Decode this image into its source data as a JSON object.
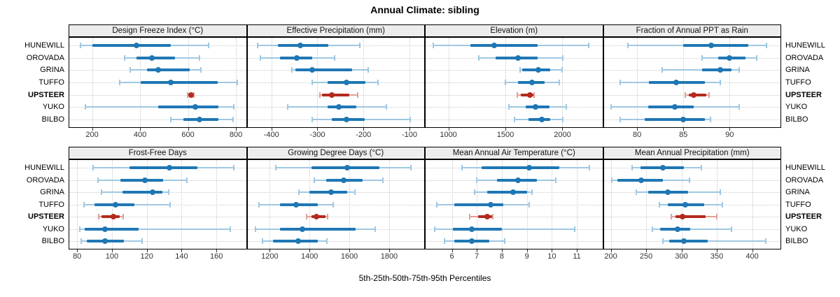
{
  "title": "Annual Climate: sibling",
  "caption": "5th-25th-50th-75th-95th Percentiles",
  "colors": {
    "normal_main": "#1f77b4",
    "normal_range": "#9fc8e2",
    "highlight_main": "#b5291e",
    "highlight_range": "#dfa099",
    "header_bg": "#ededed",
    "grid": "#c9c9c9",
    "panel_border": "#000000",
    "tick_text": "#333333"
  },
  "chart_data": {
    "type": "dot-interval-trellis",
    "layout": {
      "rows": 2,
      "cols": 4,
      "grid": "dotted",
      "legend": "none"
    },
    "sites": [
      "HUNEWILL",
      "OROVADA",
      "GRINA",
      "TUFFO",
      "UPSTEER",
      "YUKO",
      "BILBO"
    ],
    "highlight_site": "UPSTEER",
    "percentile_labels": [
      "5th",
      "25th",
      "50th",
      "75th",
      "95th"
    ],
    "panels": [
      {
        "title": "Design Freeze Index (°C)",
        "xlim": [
          105,
          842
        ],
        "ticks": [
          200,
          400,
          600,
          800
        ],
        "series": [
          [
            152,
            200,
            385,
            527,
            685
          ],
          [
            337,
            385,
            448,
            546,
            649
          ],
          [
            360,
            428,
            476,
            606,
            653
          ],
          [
            316,
            404,
            527,
            724,
            805
          ],
          [
            598,
            602,
            612,
            622,
            626
          ],
          [
            172,
            476,
            629,
            726,
            790
          ],
          [
            527,
            580,
            649,
            728,
            788
          ]
        ]
      },
      {
        "title": "Effective Precipitation (mm)",
        "xlim": [
          -452,
          -68
        ],
        "ticks": [
          -400,
          -300,
          -200,
          -100
        ],
        "series": [
          [
            -430,
            -386,
            -337,
            -276,
            -208
          ],
          [
            -424,
            -381,
            -345,
            -311,
            -262
          ],
          [
            -356,
            -348,
            -312,
            -225,
            -190
          ],
          [
            -311,
            -278,
            -237,
            -196,
            -168
          ],
          [
            -295,
            -290,
            -269,
            -231,
            -213
          ],
          [
            -364,
            -278,
            -253,
            -216,
            -150
          ],
          [
            -311,
            -268,
            -237,
            -197,
            -99
          ]
        ]
      },
      {
        "title": "Elevation (m)",
        "xlim": [
          800,
          2350
        ],
        "ticks": [
          1000,
          1500,
          2000
        ],
        "series": [
          [
            870,
            1190,
            1400,
            1780,
            2230
          ],
          [
            1265,
            1415,
            1610,
            1780,
            2005
          ],
          [
            1630,
            1645,
            1787,
            1895,
            1995
          ],
          [
            1500,
            1610,
            1732,
            1845,
            1970
          ],
          [
            1604,
            1635,
            1712,
            1745,
            1752
          ],
          [
            1530,
            1680,
            1766,
            1885,
            2035
          ],
          [
            1580,
            1700,
            1820,
            1895,
            2005
          ]
        ]
      },
      {
        "title": "Fraction of Annual PPT as Rain",
        "xlim": [
          76.4,
          95.5
        ],
        "ticks": [
          80,
          85,
          90
        ],
        "series": [
          [
            79,
            85,
            88,
            92,
            94
          ],
          [
            87,
            88.8,
            90,
            91.7,
            92.9
          ],
          [
            82.7,
            87,
            89,
            90.2,
            91
          ],
          [
            78.2,
            81.3,
            84.2,
            87.3,
            89
          ],
          [
            85.2,
            85.6,
            86.1,
            87.5,
            87.8
          ],
          [
            77.2,
            81.2,
            84.1,
            86.1,
            91
          ],
          [
            78.2,
            80.8,
            85,
            87.3,
            87.9
          ]
        ]
      },
      {
        "title": "Frost-Free Days",
        "xlim": [
          75.5,
          177
        ],
        "ticks": [
          80,
          100,
          120,
          140,
          160
        ],
        "series": [
          [
            89,
            110,
            133,
            149,
            170
          ],
          [
            92,
            105,
            119,
            129.5,
            143
          ],
          [
            94,
            106,
            123.5,
            129,
            132.5
          ],
          [
            84,
            90,
            102,
            113,
            133.5
          ],
          [
            92.5,
            94,
            101,
            104.5,
            106.5
          ],
          [
            81.5,
            84.5,
            96,
            115.5,
            168
          ],
          [
            82.5,
            85.5,
            96,
            107,
            117.5
          ]
        ]
      },
      {
        "title": "Growing Degree Days (°C)",
        "xlim": [
          1088,
          1976
        ],
        "ticks": [
          1200,
          1400,
          1600,
          1800
        ],
        "series": [
          [
            1230,
            1410,
            1590,
            1750,
            1910
          ],
          [
            1425,
            1485,
            1573,
            1666,
            1770
          ],
          [
            1346,
            1398,
            1509,
            1590,
            1627
          ],
          [
            1145,
            1252,
            1332,
            1440,
            1518
          ],
          [
            1386,
            1410,
            1435,
            1480,
            1490
          ],
          [
            1130,
            1250,
            1365,
            1630,
            1730
          ],
          [
            1162,
            1217,
            1343,
            1440,
            1486
          ]
        ]
      },
      {
        "title": "Mean Annual Air Temperature (°C)",
        "xlim": [
          4.95,
          12.02
        ],
        "ticks": [
          6,
          7,
          8,
          9,
          10,
          11
        ],
        "series": [
          [
            6.4,
            7.2,
            9.1,
            10.3,
            11.5
          ],
          [
            7.0,
            7.8,
            8.65,
            9.4,
            10.15
          ],
          [
            6.9,
            7.4,
            8.45,
            9.0,
            9.2
          ],
          [
            5.4,
            6.1,
            7.55,
            8.05,
            9.1
          ],
          [
            6.7,
            7.05,
            7.4,
            7.6,
            7.65
          ],
          [
            5.3,
            6.05,
            6.8,
            8.0,
            10.9
          ],
          [
            5.7,
            6.1,
            6.8,
            7.5,
            8.1
          ]
        ]
      },
      {
        "title": "Mean Annual Precipitation (mm)",
        "xlim": [
          190,
          440
        ],
        "ticks": [
          200,
          250,
          300,
          350,
          400
        ],
        "series": [
          [
            230,
            242,
            274,
            303,
            328
          ],
          [
            201,
            209,
            243,
            274,
            311
          ],
          [
            236,
            253,
            281,
            309,
            355
          ],
          [
            269,
            281,
            305,
            332,
            358
          ],
          [
            286,
            291,
            301,
            334,
            350
          ],
          [
            259,
            270,
            294,
            312,
            371
          ],
          [
            274,
            283,
            303,
            337,
            419
          ]
        ]
      }
    ]
  }
}
